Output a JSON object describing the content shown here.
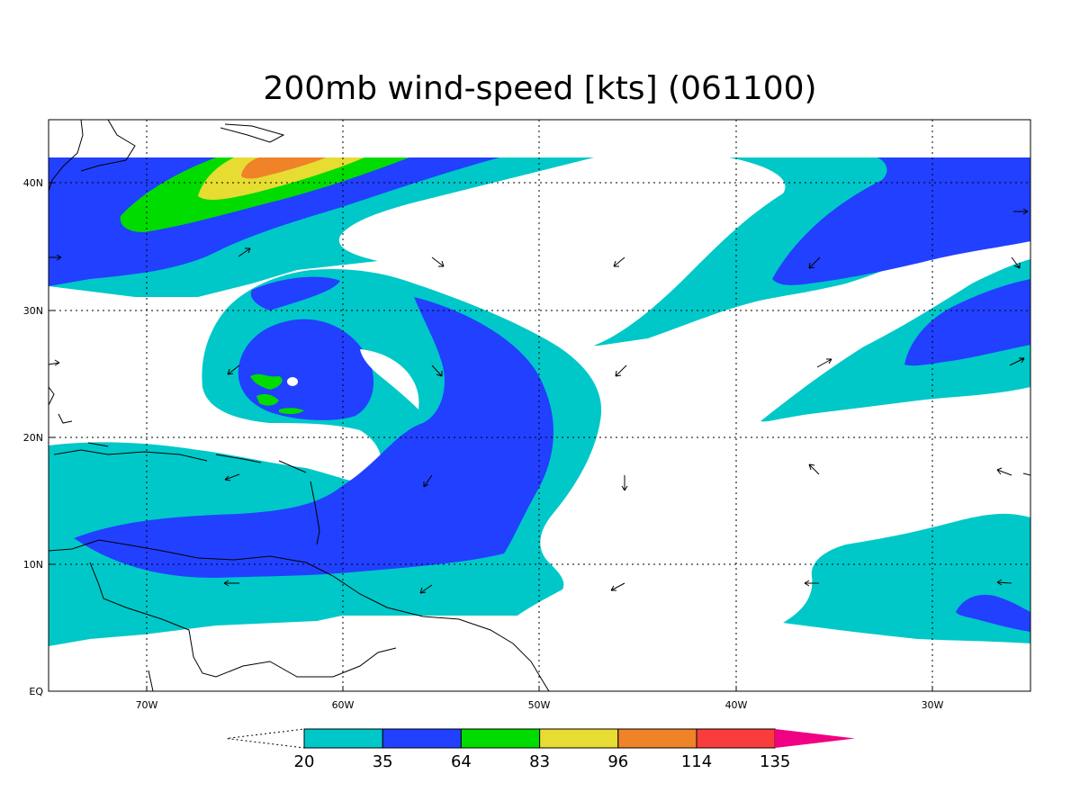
{
  "title": "200mb wind-speed [kts] (061100)",
  "lon_labels": [
    "70W",
    "60W",
    "50W",
    "40W",
    "30W"
  ],
  "lat_labels": [
    "40N",
    "30N",
    "20N",
    "10N",
    "EQ"
  ],
  "colorbar": {
    "thresholds": [
      "20",
      "35",
      "64",
      "83",
      "96",
      "114",
      "135"
    ],
    "colors": [
      "#00c8c8",
      "#2240ff",
      "#00dc00",
      "#e6dc32",
      "#f08228",
      "#fa3c3c",
      "#f00082"
    ]
  },
  "colors": {
    "cyan": "#00c8c8",
    "blue": "#2240ff",
    "green": "#00dc00",
    "yellow": "#e6dc32",
    "orange": "#f08228",
    "red": "#fa3c3c",
    "magenta": "#f00082"
  }
}
